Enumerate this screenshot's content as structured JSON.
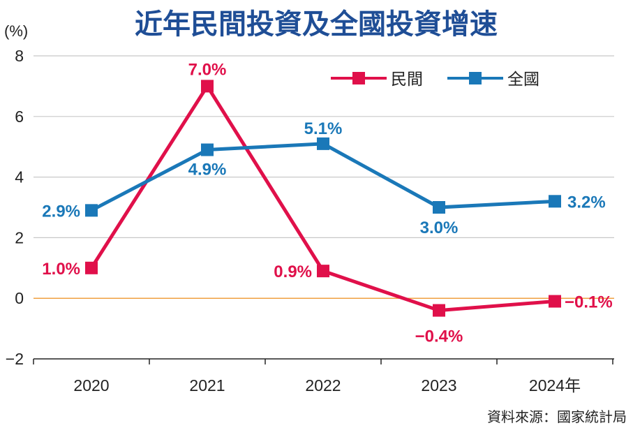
{
  "title": "近年民間投資及全國投資增速",
  "source": "資料來源：國家統計局",
  "colors": {
    "private": "#e0104a",
    "national": "#1a78b8",
    "zero_line": "#f0a040",
    "grid": "#c8c8c8",
    "title": "#1f4e96"
  },
  "chart_data": {
    "type": "line",
    "unit_label": "(%)",
    "categories": [
      "2020",
      "2021",
      "2022",
      "2023",
      "2024年"
    ],
    "ylim": [
      -2,
      8
    ],
    "yticks": [
      -2,
      0,
      2,
      4,
      6,
      8
    ],
    "ytick_labels": [
      "−2",
      "0",
      "2",
      "4",
      "6",
      "8"
    ],
    "grid": true,
    "legend_position": "top-right",
    "series": [
      {
        "name": "民間",
        "color": "#e0104a",
        "values": [
          1.0,
          7.0,
          0.9,
          -0.4,
          -0.1
        ],
        "labels": [
          "1.0%",
          "7.0%",
          "0.9%",
          "−0.4%",
          "−0.1%"
        ]
      },
      {
        "name": "全國",
        "color": "#1a78b8",
        "values": [
          2.9,
          4.9,
          5.1,
          3.0,
          3.2
        ],
        "labels": [
          "2.9%",
          "4.9%",
          "5.1%",
          "3.0%",
          "3.2%"
        ]
      }
    ]
  }
}
